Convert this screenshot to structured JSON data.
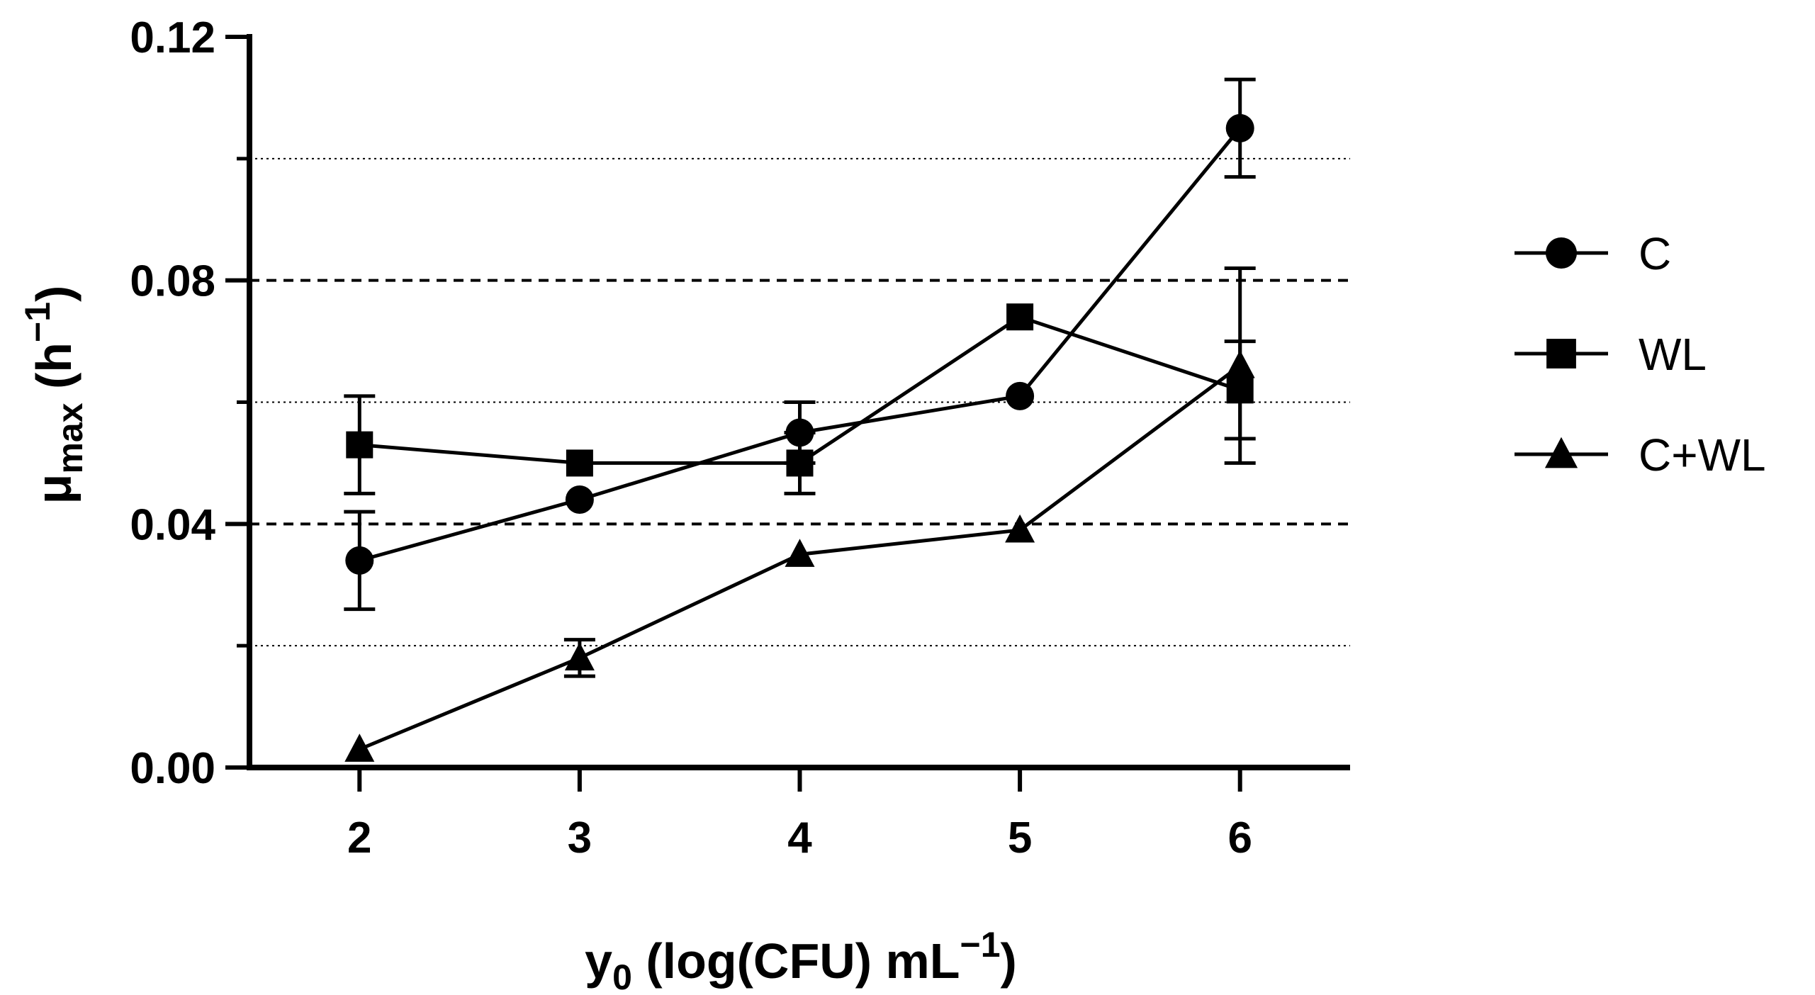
{
  "chart_data": {
    "type": "line",
    "title": "",
    "x": [
      2,
      3,
      4,
      5,
      6
    ],
    "xlim": [
      1.5,
      6.5
    ],
    "ylim": [
      0,
      0.12
    ],
    "xticks": [
      "2",
      "3",
      "4",
      "5",
      "6"
    ],
    "yticks": [
      "0.00",
      "0.04",
      "0.08",
      "0.12"
    ],
    "dashed_gridlines": [
      0.04,
      0.08
    ],
    "dotted_gridlines": [
      0.02,
      0.06,
      0.1
    ],
    "xlabel": {
      "main": "y",
      "sub": "0",
      "rest": " (log(CFU) mL",
      "sup": "−1",
      "close": ")"
    },
    "ylabel": {
      "main": "μ",
      "sub": "max",
      "rest": " (h",
      "sup": "−1",
      "close": ")"
    },
    "legend_position": "right",
    "series": [
      {
        "name": "C",
        "marker": "circle",
        "values": [
          0.034,
          0.044,
          0.055,
          0.061,
          0.105
        ],
        "errors": [
          0.008,
          0.0,
          0.005,
          0.0,
          0.008
        ]
      },
      {
        "name": "WL",
        "marker": "square",
        "values": [
          0.053,
          0.05,
          0.05,
          0.074,
          0.062
        ],
        "errors": [
          0.008,
          0.0,
          0.005,
          0.0,
          0.008
        ]
      },
      {
        "name": "C+WL",
        "marker": "triangle",
        "values": [
          0.003,
          0.018,
          0.035,
          0.039,
          0.066
        ],
        "errors": [
          0.0,
          0.003,
          0.0,
          0.0,
          0.016
        ]
      }
    ]
  }
}
